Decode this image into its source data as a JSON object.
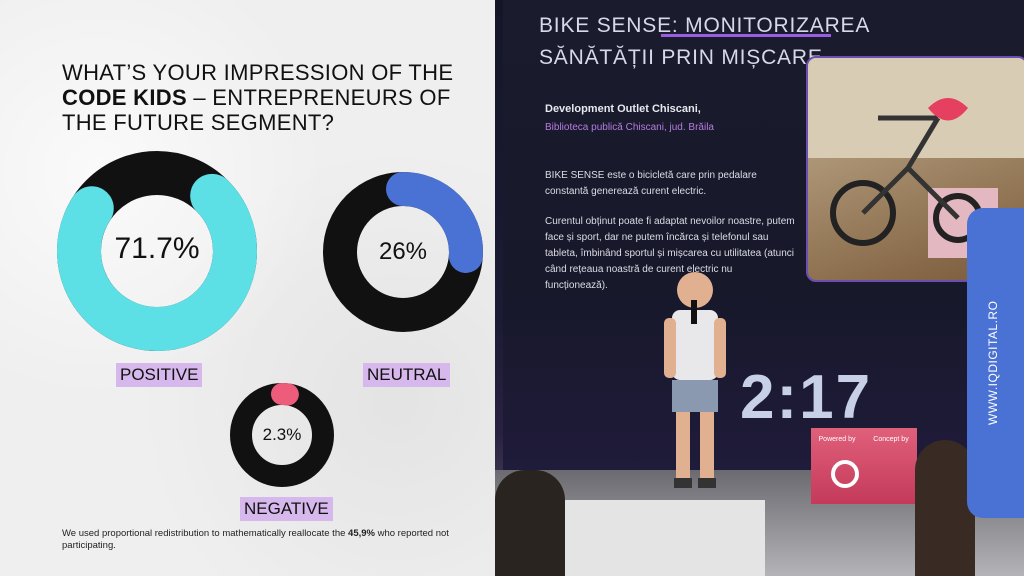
{
  "title": {
    "line1": "WHAT’S YOUR IMPRESSION OF THE",
    "bold": "CODE KIDS",
    "line2_rest": " – ENTREPRENEURS OF THE FUTURE SEGMENT?"
  },
  "chart_data": {
    "type": "pie",
    "style": "donut",
    "categories": [
      "POSITIVE",
      "NEUTRAL",
      "NEGATIVE"
    ],
    "values": [
      71.7,
      26,
      2.3
    ],
    "value_labels": [
      "71.7%",
      "26%",
      "2.3%"
    ],
    "colors": [
      "#5ddfe6",
      "#4a72d4",
      "#ee5c7c"
    ],
    "ring_color": "#111111"
  },
  "footnote": {
    "prefix": "We used proportional redistribution to mathematically reallocate the ",
    "bold": "45,9%",
    "suffix": " who reported not participating."
  },
  "photo": {
    "screen_title_line1": "BIKE SENSE: MONITORIZAREA",
    "screen_title_line2": "SĂNĂTĂȚII PRIN MIȘCARE",
    "project": "Development Outlet Chiscani,",
    "location": "Biblioteca publică Chiscani, jud. Brăila",
    "para1": "BIKE SENSE este o bicicletă care prin pedalare constantă generează curent electric.",
    "para2": "Curentul obținut poate fi adaptat nevoilor noastre, putem face și sport, dar ne putem încărca și telefonul sau tableta, îmbinând sportul și mișcarea cu utilitatea (atunci când rețeaua noastră de curent electric nu funcționează).",
    "clock": "2:17",
    "box_label1": "Powered by",
    "box_label2": "Concept by"
  },
  "side_tab": {
    "text": "WWW.IQDIGITAL.RO",
    "color": "#4a72d4"
  }
}
